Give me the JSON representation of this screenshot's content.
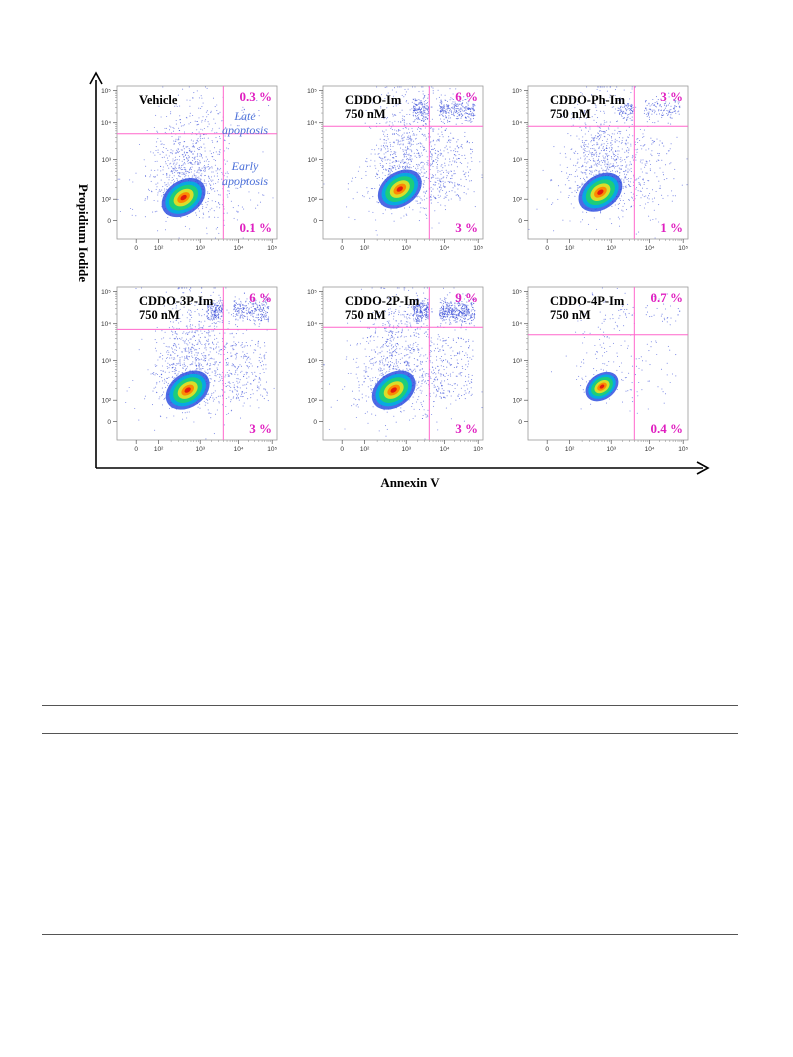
{
  "chart_data": {
    "type": "scatter",
    "xlabel": "Annexin V",
    "ylabel": "Propidium Iodide",
    "tick_labels": [
      "0",
      "10²",
      "10³",
      "10⁴",
      "10⁵"
    ],
    "tick_values": [
      0,
      100,
      1000,
      10000,
      100000
    ],
    "scale": "biexponential",
    "region_labels": {
      "late": [
        "Late",
        "apoptosis"
      ],
      "early": [
        "Early",
        "apoptosis"
      ]
    },
    "panels": [
      {
        "title": [
          "Vehicle"
        ],
        "upper_right_pct": "0.3 %",
        "lower_right_pct": "0.1 %",
        "main_cluster": {
          "x": 400,
          "y": 110
        },
        "gate": {
          "x": 4000,
          "y": 5000
        }
      },
      {
        "title": [
          "CDDO-Im",
          "750 nM"
        ],
        "upper_right_pct": "6 %",
        "lower_right_pct": "3 %",
        "main_cluster": {
          "x": 700,
          "y": 180
        },
        "gate": {
          "x": 4000,
          "y": 8000
        }
      },
      {
        "title": [
          "CDDO-Ph-Im",
          "750 nM"
        ],
        "upper_right_pct": "3 %",
        "lower_right_pct": "1 %",
        "main_cluster": {
          "x": 550,
          "y": 150
        },
        "gate": {
          "x": 4000,
          "y": 8000
        }
      },
      {
        "title": [
          "CDDO-3P-Im",
          "750 nM"
        ],
        "upper_right_pct": "6 %",
        "lower_right_pct": "3 %",
        "main_cluster": {
          "x": 500,
          "y": 180
        },
        "gate": {
          "x": 4000,
          "y": 7000
        }
      },
      {
        "title": [
          "CDDO-2P-Im",
          "750 nM"
        ],
        "upper_right_pct": "9 %",
        "lower_right_pct": "3 %",
        "main_cluster": {
          "x": 500,
          "y": 180
        },
        "gate": {
          "x": 4000,
          "y": 8000
        }
      },
      {
        "title": [
          "CDDO-4P-Im",
          "750 nM"
        ],
        "upper_right_pct": "0.7 %",
        "lower_right_pct": "0.4 %",
        "main_cluster": {
          "x": 600,
          "y": 220
        },
        "gate": {
          "x": 4000,
          "y": 5000
        }
      }
    ]
  },
  "colors": {
    "gate_lines": "#ff66cc",
    "percent_text": "#e020c0",
    "region_text": "#4a6fd8",
    "dots": "#3b4fd8",
    "density": [
      "#3050e0",
      "#00b0e0",
      "#20d070",
      "#f0e020",
      "#ff8000",
      "#e01010"
    ]
  }
}
